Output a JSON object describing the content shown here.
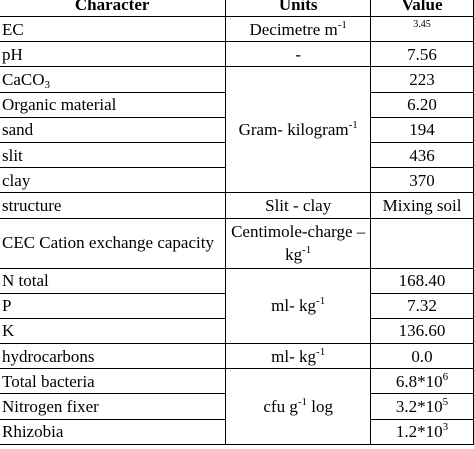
{
  "headers": {
    "character": "Character",
    "units": "Units",
    "value": "Value"
  },
  "rows": {
    "ec": {
      "character": "EC",
      "units": "Decimetre m",
      "units_sup": "-1",
      "value": "3.45"
    },
    "ph": {
      "character": "pH",
      "units": "-",
      "value": "7.56"
    },
    "caco3": {
      "character": "CaCO",
      "character_sub": "3",
      "value": "223"
    },
    "organic": {
      "character": "Organic material",
      "value": "6.20"
    },
    "sand": {
      "character": "sand",
      "value": "194"
    },
    "slit": {
      "character": "slit",
      "value": "436"
    },
    "clay": {
      "character": "clay",
      "value": "370"
    },
    "gram_units": {
      "text": "Gram- kilogram",
      "sup": "-1"
    },
    "structure": {
      "character": "structure",
      "units": "Slit - clay",
      "value": "Mixing soil"
    },
    "cec": {
      "character": "CEC Cation exchange capacity",
      "units": "Centimole-charge –kg",
      "units_sup": "-1",
      "value": ""
    },
    "n_total": {
      "character": "N total",
      "value": "168.40"
    },
    "p": {
      "character": "P",
      "value": "7.32"
    },
    "k": {
      "character": "K",
      "value": "136.60"
    },
    "ml_units": {
      "text": "ml- kg",
      "sup": "-1"
    },
    "hydrocarbons": {
      "character": "hydrocarbons",
      "units": "ml- kg",
      "units_sup": "-1",
      "value": "0.0"
    },
    "total_bacteria": {
      "character": "Total bacteria",
      "value": "6.8*10",
      "value_sup": "6"
    },
    "nitrogen_fixer": {
      "character": "Nitrogen fixer",
      "value": "3.2*10",
      "value_sup": "5"
    },
    "rhizobia": {
      "character": "Rhizobia",
      "value": "1.2*10",
      "value_sup": "3"
    },
    "cfu_units": {
      "pre": "cfu g",
      "sup": "-1",
      "post": " log"
    }
  }
}
